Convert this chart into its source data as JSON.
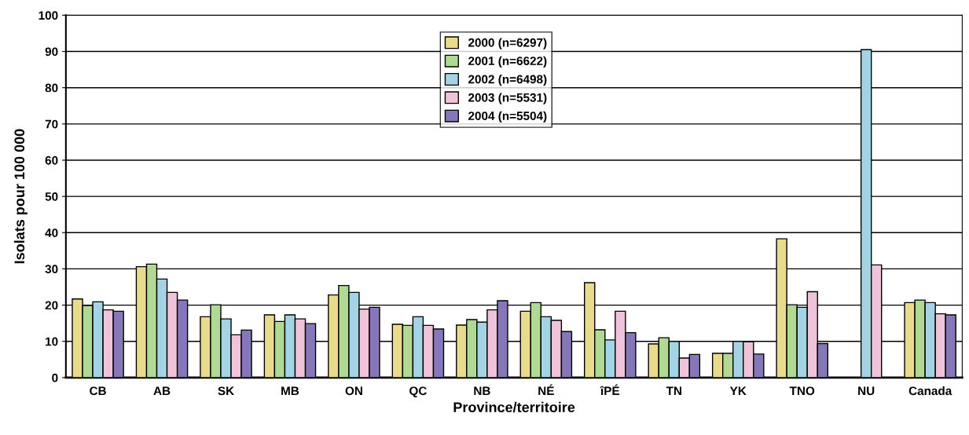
{
  "chart_data": {
    "type": "bar",
    "xlabel": "Province/territoire",
    "ylabel": "Isolats pour 100 000",
    "categories": [
      "CB",
      "AB",
      "SK",
      "MB",
      "ON",
      "QC",
      "NB",
      "NÉ",
      "îPÉ",
      "TN",
      "YK",
      "TNO",
      "NU",
      "Canada"
    ],
    "series": [
      {
        "name": "2000 (n=6297)",
        "color": "#e8dc8c",
        "values": [
          21.7,
          30.6,
          16.8,
          17.3,
          22.8,
          14.7,
          14.5,
          18.3,
          26.2,
          9.3,
          6.7,
          38.3,
          0,
          20.7
        ]
      },
      {
        "name": "2001 (n=6622)",
        "color": "#b0d994",
        "values": [
          19.9,
          31.3,
          20.1,
          15.5,
          25.4,
          14.4,
          16.0,
          20.7,
          13.2,
          11.0,
          6.7,
          20.1,
          0,
          21.4
        ]
      },
      {
        "name": "2002 (n=6498)",
        "color": "#a4d3e3",
        "values": [
          20.9,
          27.2,
          16.2,
          17.3,
          23.5,
          16.8,
          15.3,
          16.8,
          10.4,
          10.0,
          10.0,
          19.4,
          90.5,
          20.7
        ]
      },
      {
        "name": "2003 (n=5531)",
        "color": "#efc3d9",
        "values": [
          18.7,
          23.5,
          11.8,
          16.2,
          18.9,
          14.4,
          18.7,
          15.8,
          18.3,
          5.4,
          9.9,
          23.7,
          31.1,
          17.6
        ]
      },
      {
        "name": "2004 (n=5504)",
        "color": "#8677b8",
        "values": [
          18.3,
          21.4,
          13.1,
          14.9,
          19.4,
          13.4,
          21.2,
          12.7,
          12.4,
          6.4,
          6.5,
          9.4,
          0,
          17.3
        ]
      }
    ],
    "ylim": [
      0,
      100
    ],
    "yticks": [
      0,
      10,
      20,
      30,
      40,
      50,
      60,
      70,
      80,
      90,
      100
    ],
    "grid": "y",
    "legend": "top"
  }
}
